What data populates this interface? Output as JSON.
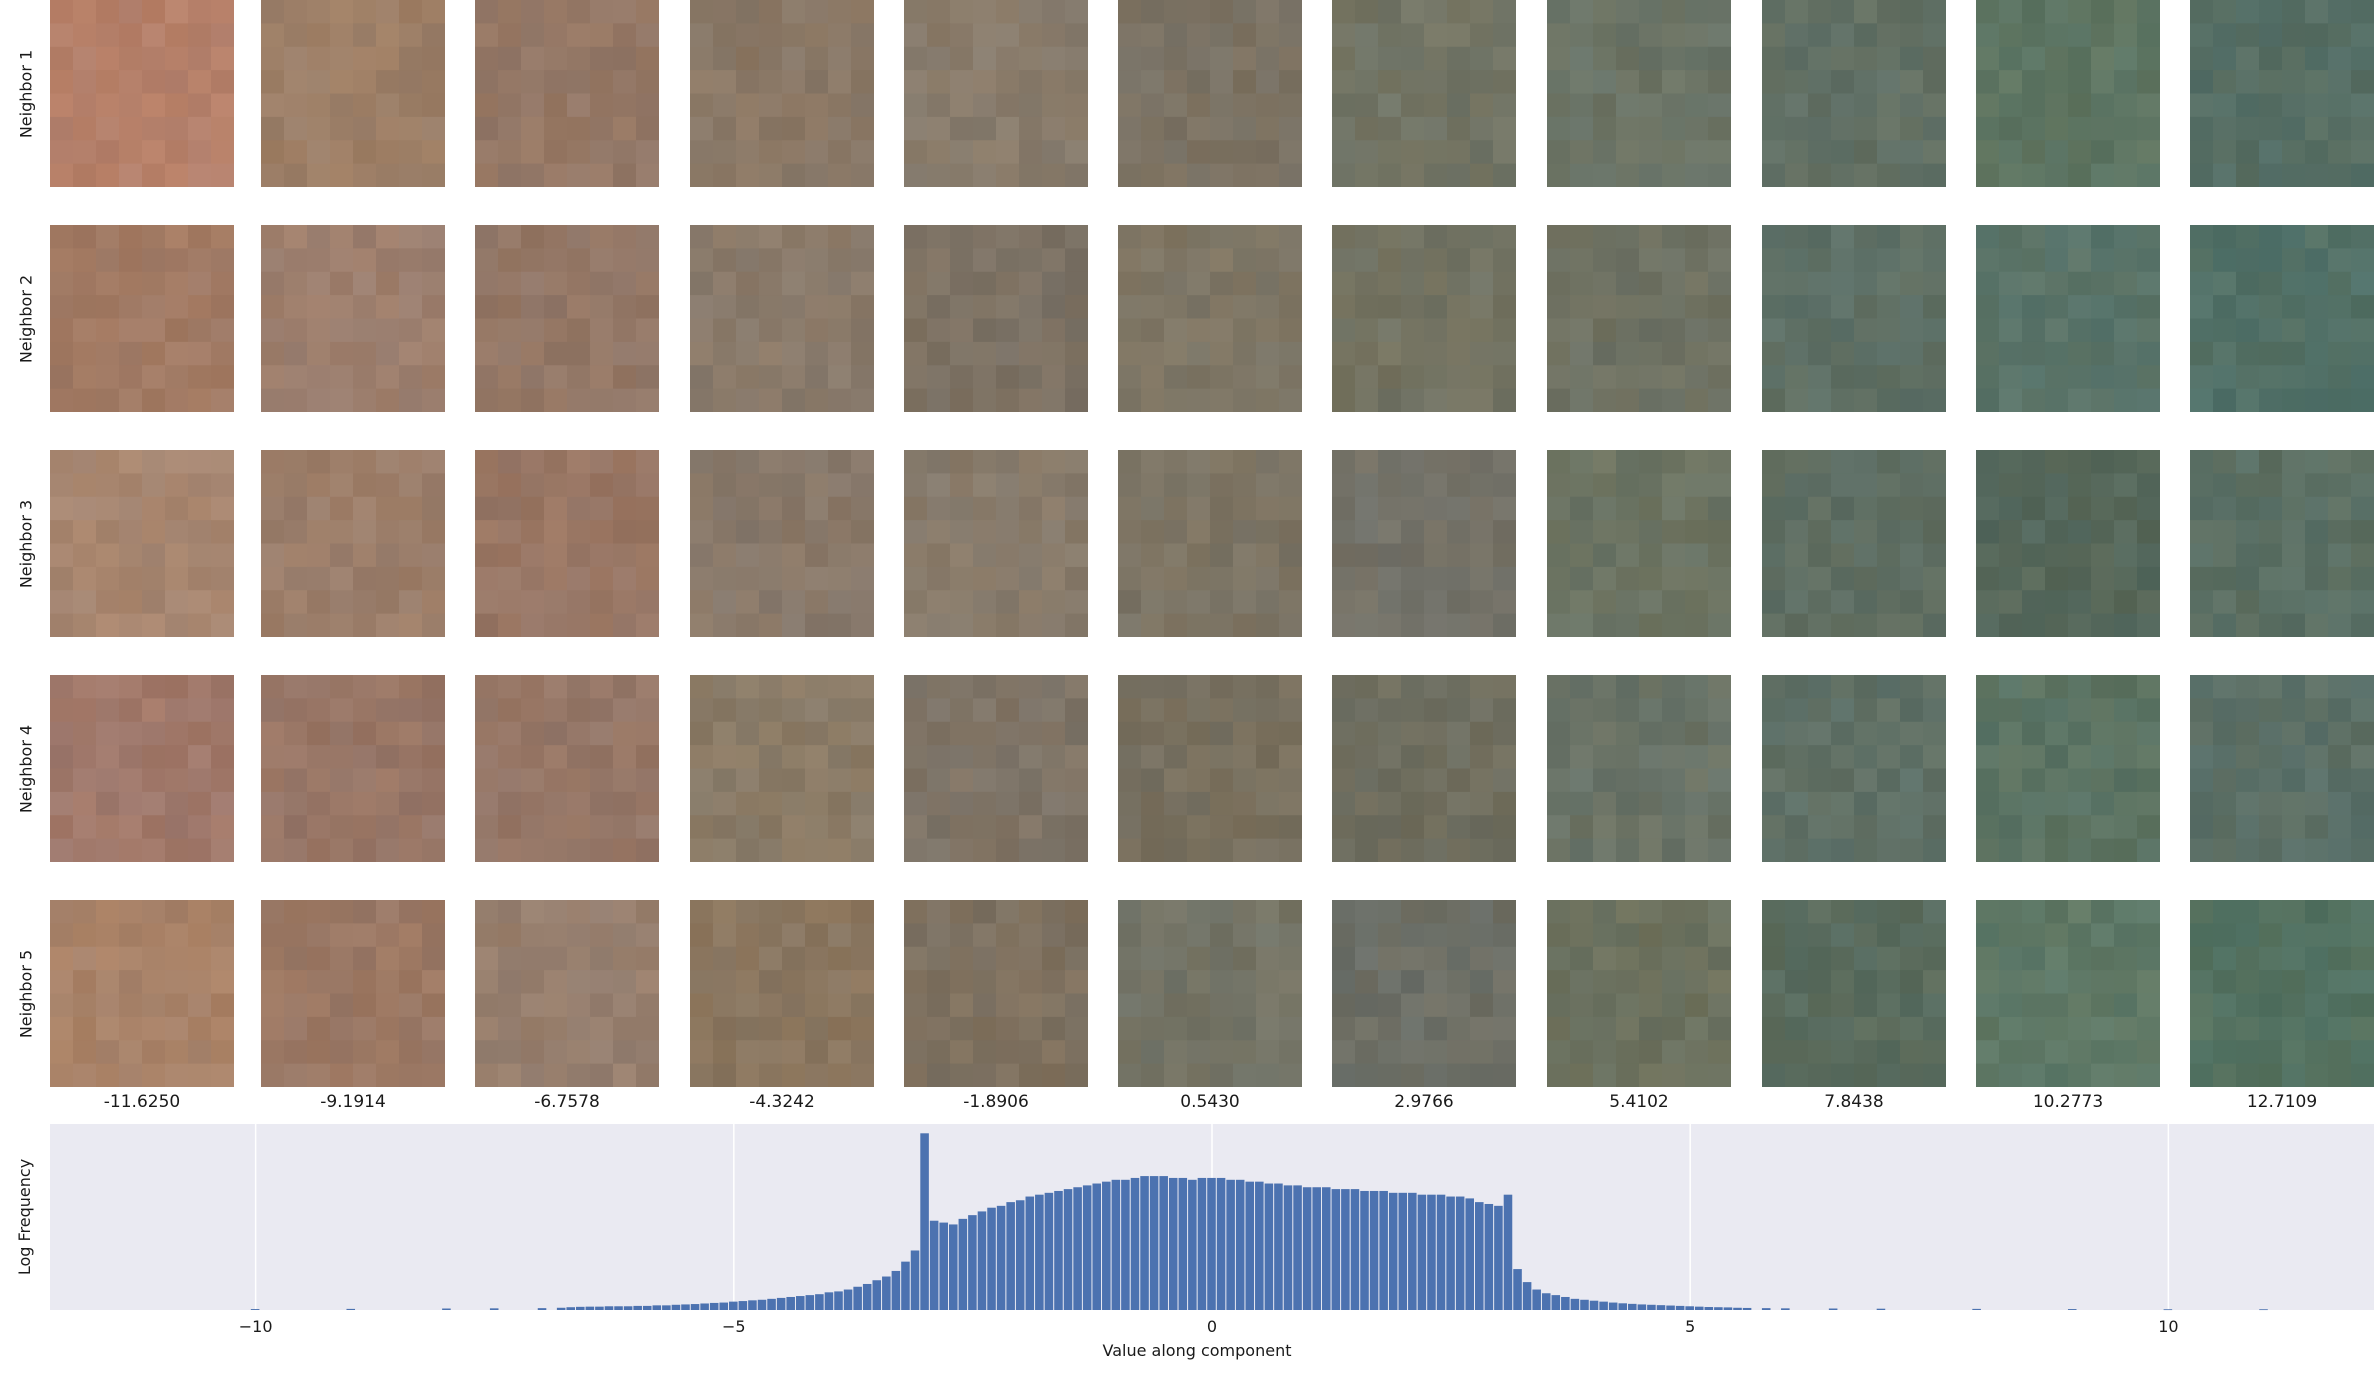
{
  "rows": [
    {
      "label": "Neighbor 1"
    },
    {
      "label": "Neighbor 2"
    },
    {
      "label": "Neighbor 3"
    },
    {
      "label": "Neighbor 4"
    },
    {
      "label": "Neighbor 5"
    }
  ],
  "columns": [
    {
      "value": "-11.6250"
    },
    {
      "value": "-9.1914"
    },
    {
      "value": "-6.7578"
    },
    {
      "value": "-4.3242"
    },
    {
      "value": "-1.8906"
    },
    {
      "value": "0.5430"
    },
    {
      "value": "2.9766"
    },
    {
      "value": "5.4102"
    },
    {
      "value": "7.8438"
    },
    {
      "value": "10.2773"
    },
    {
      "value": "12.7109"
    }
  ],
  "tile_colors": [
    [
      "#b5806a",
      "#9c7e66",
      "#957866",
      "#8a7866",
      "#897c6c",
      "#7b7263",
      "#737565",
      "#6b7466",
      "#627064",
      "#5e7562",
      "#566e64"
    ],
    [
      "#a17a64",
      "#9d7f6e",
      "#937766",
      "#8a7a6a",
      "#7d7264",
      "#7f7766",
      "#737362",
      "#6f7263",
      "#5f7065",
      "#5a7469",
      "#527066"
    ],
    [
      "#a78670",
      "#9c7e6a",
      "#987664",
      "#89796a",
      "#887b6b",
      "#7c7464",
      "#747268",
      "#6c7463",
      "#5f6e62",
      "#56685b",
      "#5b6f63"
    ],
    [
      "#a0786a",
      "#987666",
      "#967767",
      "#8a7b67",
      "#7f7466",
      "#78705f",
      "#6f6e5f",
      "#6a7366",
      "#5f7066",
      "#5b7363",
      "#5c7067"
    ],
    [
      "#a88268",
      "#9b7864",
      "#977f6e",
      "#8a765f",
      "#7e7160",
      "#747466",
      "#6d6f66",
      "#6d725f",
      "#5a6c5e",
      "#5e7866",
      "#547261"
    ]
  ],
  "chart_data": {
    "type": "bar",
    "title": "",
    "xlabel": "Value along component",
    "ylabel": "Log Frequency",
    "xlim": [
      -12.15,
      12.15
    ],
    "ylim": [
      0,
      1.0
    ],
    "xticks": [
      -10,
      -5,
      0,
      5,
      10
    ],
    "xtick_labels": [
      "−10",
      "−5",
      "0",
      "5",
      "10"
    ],
    "grid": true,
    "bar_color": "#4c72b0",
    "background": "#eaeaf2",
    "bin_width": 0.1,
    "bins": [
      {
        "x": -10.0,
        "v": 0.005
      },
      {
        "x": -9.0,
        "v": 0.006
      },
      {
        "x": -8.0,
        "v": 0.008
      },
      {
        "x": -7.5,
        "v": 0.009
      },
      {
        "x": -7.0,
        "v": 0.01
      },
      {
        "x": -6.8,
        "v": 0.012
      },
      {
        "x": -6.7,
        "v": 0.015
      },
      {
        "x": -6.6,
        "v": 0.017
      },
      {
        "x": -6.5,
        "v": 0.018
      },
      {
        "x": -6.4,
        "v": 0.018
      },
      {
        "x": -6.3,
        "v": 0.02
      },
      {
        "x": -6.2,
        "v": 0.02
      },
      {
        "x": -6.1,
        "v": 0.02
      },
      {
        "x": -6.0,
        "v": 0.022
      },
      {
        "x": -5.9,
        "v": 0.022
      },
      {
        "x": -5.8,
        "v": 0.025
      },
      {
        "x": -5.7,
        "v": 0.025
      },
      {
        "x": -5.6,
        "v": 0.028
      },
      {
        "x": -5.5,
        "v": 0.03
      },
      {
        "x": -5.4,
        "v": 0.032
      },
      {
        "x": -5.3,
        "v": 0.035
      },
      {
        "x": -5.2,
        "v": 0.038
      },
      {
        "x": -5.1,
        "v": 0.04
      },
      {
        "x": -5.0,
        "v": 0.045
      },
      {
        "x": -4.9,
        "v": 0.048
      },
      {
        "x": -4.8,
        "v": 0.052
      },
      {
        "x": -4.7,
        "v": 0.055
      },
      {
        "x": -4.6,
        "v": 0.06
      },
      {
        "x": -4.5,
        "v": 0.065
      },
      {
        "x": -4.4,
        "v": 0.07
      },
      {
        "x": -4.3,
        "v": 0.075
      },
      {
        "x": -4.2,
        "v": 0.08
      },
      {
        "x": -4.1,
        "v": 0.085
      },
      {
        "x": -4.0,
        "v": 0.095
      },
      {
        "x": -3.9,
        "v": 0.1
      },
      {
        "x": -3.8,
        "v": 0.11
      },
      {
        "x": -3.7,
        "v": 0.125
      },
      {
        "x": -3.6,
        "v": 0.14
      },
      {
        "x": -3.5,
        "v": 0.16
      },
      {
        "x": -3.4,
        "v": 0.18
      },
      {
        "x": -3.3,
        "v": 0.21
      },
      {
        "x": -3.2,
        "v": 0.26
      },
      {
        "x": -3.1,
        "v": 0.32
      },
      {
        "x": -3.0,
        "v": 0.95
      },
      {
        "x": -2.9,
        "v": 0.48
      },
      {
        "x": -2.8,
        "v": 0.47
      },
      {
        "x": -2.7,
        "v": 0.46
      },
      {
        "x": -2.6,
        "v": 0.49
      },
      {
        "x": -2.5,
        "v": 0.51
      },
      {
        "x": -2.4,
        "v": 0.53
      },
      {
        "x": -2.3,
        "v": 0.55
      },
      {
        "x": -2.2,
        "v": 0.56
      },
      {
        "x": -2.1,
        "v": 0.58
      },
      {
        "x": -2.0,
        "v": 0.59
      },
      {
        "x": -1.9,
        "v": 0.61
      },
      {
        "x": -1.8,
        "v": 0.62
      },
      {
        "x": -1.7,
        "v": 0.63
      },
      {
        "x": -1.6,
        "v": 0.64
      },
      {
        "x": -1.5,
        "v": 0.65
      },
      {
        "x": -1.4,
        "v": 0.66
      },
      {
        "x": -1.3,
        "v": 0.67
      },
      {
        "x": -1.2,
        "v": 0.68
      },
      {
        "x": -1.1,
        "v": 0.69
      },
      {
        "x": -1.0,
        "v": 0.7
      },
      {
        "x": -0.9,
        "v": 0.7
      },
      {
        "x": -0.8,
        "v": 0.71
      },
      {
        "x": -0.7,
        "v": 0.72
      },
      {
        "x": -0.6,
        "v": 0.72
      },
      {
        "x": -0.5,
        "v": 0.72
      },
      {
        "x": -0.4,
        "v": 0.71
      },
      {
        "x": -0.3,
        "v": 0.71
      },
      {
        "x": -0.2,
        "v": 0.7
      },
      {
        "x": -0.1,
        "v": 0.71
      },
      {
        "x": 0.0,
        "v": 0.71
      },
      {
        "x": 0.1,
        "v": 0.71
      },
      {
        "x": 0.2,
        "v": 0.7
      },
      {
        "x": 0.3,
        "v": 0.7
      },
      {
        "x": 0.4,
        "v": 0.69
      },
      {
        "x": 0.5,
        "v": 0.69
      },
      {
        "x": 0.6,
        "v": 0.68
      },
      {
        "x": 0.7,
        "v": 0.68
      },
      {
        "x": 0.8,
        "v": 0.67
      },
      {
        "x": 0.9,
        "v": 0.67
      },
      {
        "x": 1.0,
        "v": 0.66
      },
      {
        "x": 1.1,
        "v": 0.66
      },
      {
        "x": 1.2,
        "v": 0.66
      },
      {
        "x": 1.3,
        "v": 0.65
      },
      {
        "x": 1.4,
        "v": 0.65
      },
      {
        "x": 1.5,
        "v": 0.65
      },
      {
        "x": 1.6,
        "v": 0.64
      },
      {
        "x": 1.7,
        "v": 0.64
      },
      {
        "x": 1.8,
        "v": 0.64
      },
      {
        "x": 1.9,
        "v": 0.63
      },
      {
        "x": 2.0,
        "v": 0.63
      },
      {
        "x": 2.1,
        "v": 0.63
      },
      {
        "x": 2.2,
        "v": 0.62
      },
      {
        "x": 2.3,
        "v": 0.62
      },
      {
        "x": 2.4,
        "v": 0.62
      },
      {
        "x": 2.5,
        "v": 0.61
      },
      {
        "x": 2.6,
        "v": 0.61
      },
      {
        "x": 2.7,
        "v": 0.6
      },
      {
        "x": 2.8,
        "v": 0.58
      },
      {
        "x": 2.9,
        "v": 0.57
      },
      {
        "x": 3.0,
        "v": 0.56
      },
      {
        "x": 3.1,
        "v": 0.62
      },
      {
        "x": 3.2,
        "v": 0.22
      },
      {
        "x": 3.3,
        "v": 0.15
      },
      {
        "x": 3.4,
        "v": 0.11
      },
      {
        "x": 3.5,
        "v": 0.09
      },
      {
        "x": 3.6,
        "v": 0.08
      },
      {
        "x": 3.7,
        "v": 0.07
      },
      {
        "x": 3.8,
        "v": 0.06
      },
      {
        "x": 3.9,
        "v": 0.055
      },
      {
        "x": 4.0,
        "v": 0.05
      },
      {
        "x": 4.1,
        "v": 0.045
      },
      {
        "x": 4.2,
        "v": 0.04
      },
      {
        "x": 4.3,
        "v": 0.036
      },
      {
        "x": 4.4,
        "v": 0.033
      },
      {
        "x": 4.5,
        "v": 0.03
      },
      {
        "x": 4.6,
        "v": 0.028
      },
      {
        "x": 4.7,
        "v": 0.026
      },
      {
        "x": 4.8,
        "v": 0.024
      },
      {
        "x": 4.9,
        "v": 0.022
      },
      {
        "x": 5.0,
        "v": 0.02
      },
      {
        "x": 5.1,
        "v": 0.018
      },
      {
        "x": 5.2,
        "v": 0.016
      },
      {
        "x": 5.3,
        "v": 0.015
      },
      {
        "x": 5.4,
        "v": 0.014
      },
      {
        "x": 5.5,
        "v": 0.012
      },
      {
        "x": 5.6,
        "v": 0.011
      },
      {
        "x": 5.8,
        "v": 0.01
      },
      {
        "x": 6.0,
        "v": 0.009
      },
      {
        "x": 6.5,
        "v": 0.008
      },
      {
        "x": 7.0,
        "v": 0.007
      },
      {
        "x": 8.0,
        "v": 0.006
      },
      {
        "x": 9.0,
        "v": 0.005
      },
      {
        "x": 10.0,
        "v": 0.004
      },
      {
        "x": 11.0,
        "v": 0.004
      }
    ]
  }
}
